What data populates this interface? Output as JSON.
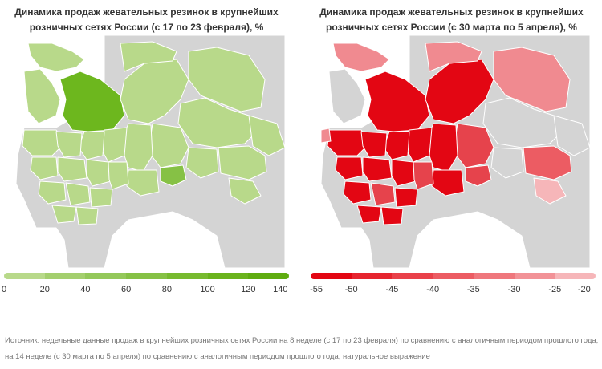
{
  "maps": [
    {
      "id": "left",
      "title_line1": "Динамика продаж жевательных резинок в крупнейших",
      "title_line2": "розничных сетях России (с 17 по 23 февраля), %",
      "legend_colors": [
        "#b8d98a",
        "#a4cf6e",
        "#94c85a",
        "#86c145",
        "#77ba2f",
        "#6ab31d",
        "#5fac10"
      ],
      "legend_ticks": [
        "0",
        "20",
        "40",
        "60",
        "80",
        "100",
        "120",
        "140"
      ],
      "region_colors": {
        "no_data": "#d4d4d4",
        "low": "#b8d98a",
        "high": "#6db71e",
        "mid": "#86c145"
      }
    },
    {
      "id": "right",
      "title_line1": "Динамика продаж жевательных резинок в крупнейших",
      "title_line2": "розничных сетях России (с 30 марта по 5 апреля), %",
      "legend_colors": [
        "#e30613",
        "#e6252f",
        "#e9414a",
        "#ec5c63",
        "#ef777d",
        "#f29297",
        "#f6b6b9"
      ],
      "legend_ticks": [
        "-55",
        "-50",
        "-45",
        "-40",
        "-35",
        "-30",
        "-25",
        "-20"
      ],
      "region_colors": {
        "no_data": "#d4d4d4",
        "strong": "#e30613",
        "mid": "#e6434c",
        "weak": "#f08a90",
        "faint": "#f6b6b9"
      }
    }
  ],
  "source_note": "Источник: недельные данные продаж в крупнейших розничных сетях России на 8 неделе (с 17 по 23 февраля) по сравнению с аналогичным периодом прошлого года, на 14 неделе (с 30 марта по 5 апреля) по сравнению с аналогичным периодом прошлого года, натуральное выражение"
}
